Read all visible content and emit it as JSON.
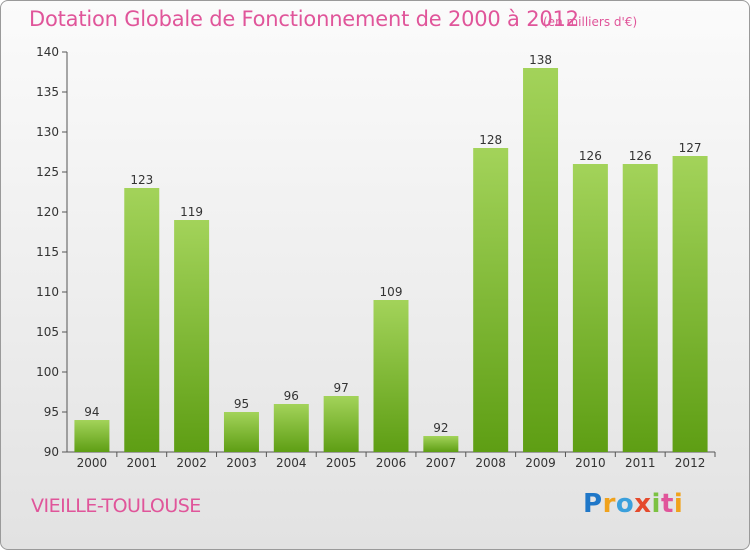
{
  "title": "Dotation Globale de Fonctionnement de 2000 à 2012",
  "unit_label": "(en milliers d'€)",
  "commune": "VIEILLE-TOULOUSE",
  "logo": {
    "text": "Proxiti",
    "letters": [
      "P",
      "r",
      "o",
      "x",
      "i",
      "t",
      "i"
    ]
  },
  "colors": {
    "title": "#e0559a",
    "bar_top": "#a3d35a",
    "bar_bottom": "#5e9e14",
    "axis": "#555555",
    "grid": "#d0d0d0"
  },
  "chart_data": {
    "type": "bar",
    "categories": [
      "2000",
      "2001",
      "2002",
      "2003",
      "2004",
      "2005",
      "2006",
      "2007",
      "2008",
      "2009",
      "2010",
      "2011",
      "2012"
    ],
    "values": [
      94,
      123,
      119,
      95,
      96,
      97,
      109,
      92,
      128,
      138,
      126,
      126,
      127
    ],
    "ylim": [
      90,
      140
    ],
    "yticks": [
      90,
      95,
      100,
      105,
      110,
      115,
      120,
      125,
      130,
      135,
      140
    ],
    "grid": false,
    "data_labels": true
  }
}
